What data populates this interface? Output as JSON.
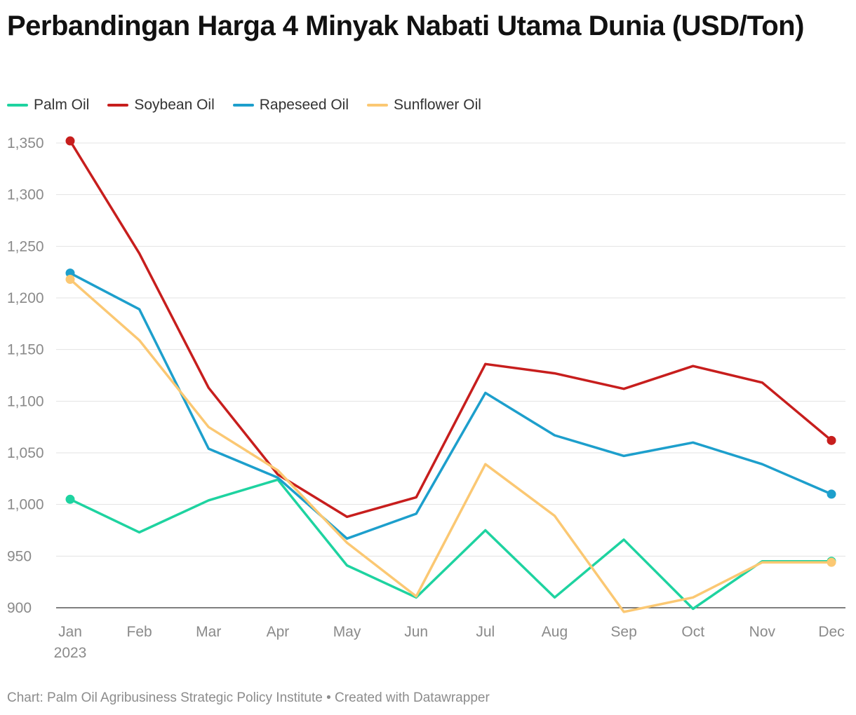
{
  "chart_data": {
    "type": "line",
    "title": "Perbandingan Harga 4 Minyak Nabati Utama Dunia (USD/Ton)",
    "categories": [
      "Jan",
      "Feb",
      "Mar",
      "Apr",
      "May",
      "Jun",
      "Jul",
      "Aug",
      "Sep",
      "Oct",
      "Nov",
      "Dec"
    ],
    "year_label": "2023",
    "ylim": [
      900,
      1350
    ],
    "yticks": [
      900,
      950,
      1000,
      1050,
      1100,
      1150,
      1200,
      1250,
      1300,
      1350
    ],
    "grid": true,
    "legend_position": "top-left",
    "series": [
      {
        "name": "Palm Oil",
        "color": "#1ed3a0",
        "values": [
          1005,
          973,
          1004,
          1024,
          941,
          910,
          975,
          910,
          966,
          899,
          945,
          945
        ]
      },
      {
        "name": "Soybean Oil",
        "color": "#c71e1d",
        "values": [
          1352,
          1243,
          1113,
          1029,
          988,
          1007,
          1136,
          1127,
          1112,
          1134,
          1118,
          1062
        ]
      },
      {
        "name": "Rapeseed Oil",
        "color": "#1d9fcc",
        "values": [
          1224,
          1189,
          1054,
          1026,
          967,
          991,
          1108,
          1067,
          1047,
          1060,
          1039,
          1010
        ]
      },
      {
        "name": "Sunflower Oil",
        "color": "#fbc873",
        "values": [
          1218,
          1159,
          1075,
          1033,
          963,
          911,
          1039,
          989,
          896,
          910,
          944,
          944
        ]
      }
    ]
  },
  "title": "Perbandingan Harga 4 Minyak Nabati Utama Dunia (USD/Ton)",
  "footer": "Chart: Palm Oil Agribusiness Strategic Policy Institute • Created with Datawrapper"
}
